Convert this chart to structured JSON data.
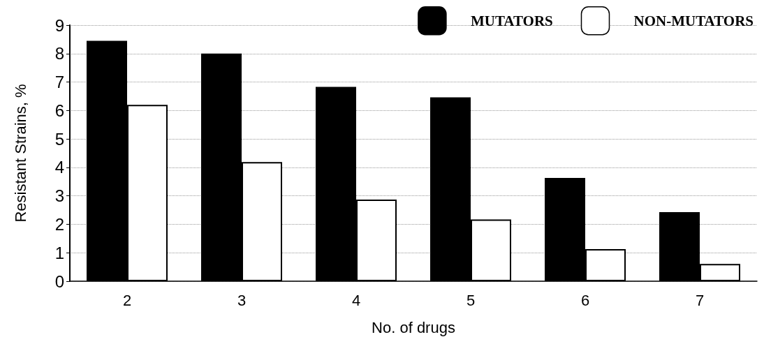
{
  "chart_data": {
    "type": "bar",
    "xlabel": "No. of drugs",
    "ylabel": "Resistant Strains, %",
    "categories": [
      "2",
      "3",
      "4",
      "5",
      "6",
      "7"
    ],
    "series": [
      {
        "name": "MUTATORS",
        "color": "#000000",
        "values": [
          8.45,
          8.0,
          6.83,
          6.46,
          3.63,
          2.43
        ]
      },
      {
        "name": "NON-MUTATORS",
        "color": "#ffffff",
        "values": [
          6.2,
          4.19,
          2.87,
          2.17,
          1.13,
          0.61
        ]
      }
    ],
    "ylim": [
      0,
      9
    ],
    "yticks": [
      0,
      1,
      2,
      3,
      4,
      5,
      6,
      7,
      8,
      9
    ],
    "grid": "y",
    "legend": "top right"
  }
}
